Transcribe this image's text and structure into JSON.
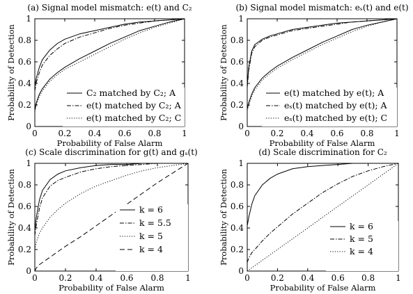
{
  "chart_data": [
    {
      "type": "line",
      "title": "(a) Signal model mismatch: e(t) and C₂",
      "xlabel": "Probability of False Alarm",
      "ylabel": "Probability of Detection",
      "xlim": [
        0,
        1
      ],
      "ylim": [
        0,
        1
      ],
      "xticks": [
        "0",
        "0.2",
        "0.4",
        "0.6",
        "0.8",
        "1"
      ],
      "yticks": [
        "0",
        "0.2",
        "0.4",
        "0.6",
        "0.8",
        "1"
      ],
      "grid": false,
      "legend": "bottom-right",
      "series": [
        {
          "name": "C₂ matched by C₂; A",
          "style": "solid",
          "x": [
            0,
            0.01,
            0.03,
            0.05,
            0.1,
            0.15,
            0.2,
            0.3,
            0.4,
            0.5,
            0.6,
            0.7,
            0.8,
            0.9,
            1.0
          ],
          "y": [
            0.37,
            0.45,
            0.55,
            0.62,
            0.71,
            0.77,
            0.81,
            0.86,
            0.89,
            0.92,
            0.95,
            0.97,
            0.98,
            0.99,
            1.0
          ]
        },
        {
          "name": "e(t) matched by C₂; A",
          "style": "dashdot",
          "x": [
            0,
            0.01,
            0.03,
            0.05,
            0.1,
            0.15,
            0.2,
            0.3,
            0.4,
            0.5,
            0.6,
            0.7,
            0.8,
            0.9,
            1.0
          ],
          "y": [
            0.33,
            0.41,
            0.5,
            0.57,
            0.66,
            0.72,
            0.77,
            0.83,
            0.87,
            0.91,
            0.94,
            0.96,
            0.98,
            0.99,
            1.0
          ]
        },
        {
          "name": "e(t) matched by C₂; C",
          "style": "dotted",
          "x": [
            0,
            0.01,
            0.03,
            0.05,
            0.1,
            0.15,
            0.2,
            0.3,
            0.4,
            0.5,
            0.6,
            0.7,
            0.8,
            0.9,
            1.0
          ],
          "y": [
            0.14,
            0.2,
            0.28,
            0.33,
            0.42,
            0.48,
            0.53,
            0.6,
            0.67,
            0.74,
            0.81,
            0.87,
            0.92,
            0.96,
            1.0
          ]
        },
        {
          "name": "",
          "style": "solid",
          "x": [
            0,
            0.01,
            0.03,
            0.05,
            0.1,
            0.15,
            0.2,
            0.3,
            0.4,
            0.5,
            0.6,
            0.7,
            0.8,
            0.9,
            1.0
          ],
          "y": [
            0.15,
            0.22,
            0.3,
            0.35,
            0.44,
            0.5,
            0.55,
            0.63,
            0.7,
            0.77,
            0.83,
            0.89,
            0.93,
            0.97,
            1.0
          ]
        }
      ]
    },
    {
      "type": "line",
      "title": "(b) Signal model mismatch: eₛ(t) and e(t)",
      "xlabel": "Probability of False Alarm",
      "ylabel": "Probability of Detection",
      "xlim": [
        0,
        1
      ],
      "ylim": [
        0,
        1
      ],
      "xticks": [
        "0",
        "0.2",
        "0.4",
        "0.6",
        "0.8",
        "1"
      ],
      "yticks": [
        "0",
        "0.2",
        "0.4",
        "0.6",
        "0.8",
        "1"
      ],
      "grid": false,
      "legend": "bottom-right",
      "series": [
        {
          "name": "e(t) matched by e(t); A",
          "style": "solid",
          "x": [
            0,
            0.01,
            0.03,
            0.05,
            0.1,
            0.15,
            0.2,
            0.3,
            0.4,
            0.5,
            0.6,
            0.7,
            0.8,
            0.9,
            1.0
          ],
          "y": [
            0.38,
            0.55,
            0.7,
            0.76,
            0.81,
            0.84,
            0.86,
            0.9,
            0.92,
            0.94,
            0.96,
            0.97,
            0.98,
            0.99,
            1.0
          ]
        },
        {
          "name": "eₛ(t) matched by e(t); A",
          "style": "dashdot",
          "x": [
            0,
            0.01,
            0.03,
            0.05,
            0.1,
            0.15,
            0.2,
            0.3,
            0.4,
            0.5,
            0.6,
            0.7,
            0.8,
            0.9,
            1.0
          ],
          "y": [
            0.36,
            0.52,
            0.68,
            0.74,
            0.8,
            0.83,
            0.85,
            0.89,
            0.91,
            0.93,
            0.95,
            0.97,
            0.98,
            0.99,
            1.0
          ]
        },
        {
          "name": "eₛ(t) matched by e(t); C",
          "style": "dotted",
          "x": [
            0,
            0.01,
            0.03,
            0.05,
            0.1,
            0.15,
            0.2,
            0.3,
            0.4,
            0.5,
            0.6,
            0.7,
            0.8,
            0.9,
            1.0
          ],
          "y": [
            0.15,
            0.2,
            0.28,
            0.34,
            0.43,
            0.49,
            0.54,
            0.62,
            0.69,
            0.76,
            0.82,
            0.88,
            0.93,
            0.97,
            1.0
          ]
        },
        {
          "name": "",
          "style": "solid",
          "x": [
            0,
            0.01,
            0.03,
            0.05,
            0.1,
            0.15,
            0.2,
            0.3,
            0.4,
            0.5,
            0.6,
            0.7,
            0.8,
            0.9,
            1.0
          ],
          "y": [
            0.16,
            0.22,
            0.3,
            0.36,
            0.45,
            0.51,
            0.56,
            0.64,
            0.71,
            0.78,
            0.84,
            0.9,
            0.94,
            0.97,
            1.0
          ]
        }
      ]
    },
    {
      "type": "line",
      "title": "(c) Scale discrimination for g(t) and gₛ(t)",
      "xlabel": "Probability of False Alarm",
      "ylabel": "Probability of Detection",
      "xlim": [
        0,
        1
      ],
      "ylim": [
        0,
        1
      ],
      "xticks": [
        "0",
        "0.2",
        "0.4",
        "0.6",
        "0.8",
        "1"
      ],
      "yticks": [
        "0",
        "0.2",
        "0.4",
        "0.6",
        "0.8",
        "1"
      ],
      "grid": false,
      "legend": "bottom-right",
      "series": [
        {
          "name": "k = 6",
          "style": "solid",
          "x": [
            0,
            0.01,
            0.03,
            0.05,
            0.1,
            0.15,
            0.2,
            0.3,
            0.4,
            0.5,
            0.6,
            0.7,
            0.8,
            0.9,
            1.0
          ],
          "y": [
            0.38,
            0.5,
            0.66,
            0.75,
            0.85,
            0.9,
            0.93,
            0.96,
            0.98,
            0.99,
            0.99,
            1.0,
            1.0,
            1.0,
            1.0
          ]
        },
        {
          "name": "k = 5.5",
          "style": "dashdot",
          "x": [
            0,
            0.01,
            0.03,
            0.05,
            0.1,
            0.15,
            0.2,
            0.3,
            0.4,
            0.5,
            0.6,
            0.7,
            0.8,
            0.9,
            1.0
          ],
          "y": [
            0.33,
            0.43,
            0.58,
            0.68,
            0.79,
            0.84,
            0.87,
            0.92,
            0.95,
            0.97,
            0.98,
            0.99,
            1.0,
            1.0,
            1.0
          ]
        },
        {
          "name": "k = 5",
          "style": "dotted",
          "x": [
            0,
            0.01,
            0.03,
            0.05,
            0.1,
            0.15,
            0.2,
            0.3,
            0.4,
            0.5,
            0.6,
            0.7,
            0.8,
            0.9,
            1.0
          ],
          "y": [
            0.2,
            0.27,
            0.35,
            0.4,
            0.5,
            0.57,
            0.63,
            0.72,
            0.79,
            0.84,
            0.89,
            0.93,
            0.96,
            0.98,
            1.0
          ]
        },
        {
          "name": "k = 4",
          "style": "dashed",
          "x": [
            0,
            0.01,
            0.03,
            0.05,
            0.1,
            0.15,
            0.2,
            0.3,
            0.4,
            0.5,
            0.6,
            0.7,
            0.8,
            0.9,
            1.0
          ],
          "y": [
            0.0,
            0.03,
            0.06,
            0.08,
            0.13,
            0.18,
            0.23,
            0.32,
            0.42,
            0.52,
            0.62,
            0.72,
            0.82,
            0.91,
            1.0
          ]
        }
      ]
    },
    {
      "type": "line",
      "title": "(d) Scale discrimination for C₂",
      "xlabel": "Probability of False Alarm",
      "ylabel": "Probability of Detection",
      "xlim": [
        0,
        1
      ],
      "ylim": [
        0,
        1
      ],
      "xticks": [
        "0",
        "0.2",
        "0.4",
        "0.6",
        "0.8",
        "1"
      ],
      "yticks": [
        "0",
        "0.2",
        "0.4",
        "0.6",
        "0.8",
        "1"
      ],
      "grid": false,
      "legend": "bottom-right",
      "series": [
        {
          "name": "k = 6",
          "style": "solid",
          "x": [
            0,
            0.01,
            0.03,
            0.05,
            0.1,
            0.15,
            0.2,
            0.3,
            0.4,
            0.5,
            0.6,
            0.7,
            0.8,
            0.9,
            1.0
          ],
          "y": [
            0.42,
            0.5,
            0.62,
            0.7,
            0.8,
            0.86,
            0.9,
            0.95,
            0.97,
            0.98,
            0.99,
            1.0,
            1.0,
            1.0,
            1.0
          ]
        },
        {
          "name": "k = 5",
          "style": "dashdot",
          "x": [
            0,
            0.01,
            0.03,
            0.05,
            0.1,
            0.15,
            0.2,
            0.3,
            0.4,
            0.5,
            0.6,
            0.7,
            0.8,
            0.9,
            1.0
          ],
          "y": [
            0.08,
            0.12,
            0.17,
            0.2,
            0.28,
            0.35,
            0.41,
            0.53,
            0.63,
            0.73,
            0.81,
            0.88,
            0.93,
            0.97,
            1.0
          ]
        },
        {
          "name": "k = 4",
          "style": "dotted",
          "x": [
            0,
            0.01,
            0.03,
            0.05,
            0.1,
            0.15,
            0.2,
            0.3,
            0.4,
            0.5,
            0.6,
            0.7,
            0.8,
            0.9,
            1.0
          ],
          "y": [
            0.0,
            0.01,
            0.03,
            0.05,
            0.1,
            0.15,
            0.2,
            0.3,
            0.4,
            0.5,
            0.6,
            0.7,
            0.8,
            0.9,
            1.0
          ]
        }
      ]
    }
  ]
}
